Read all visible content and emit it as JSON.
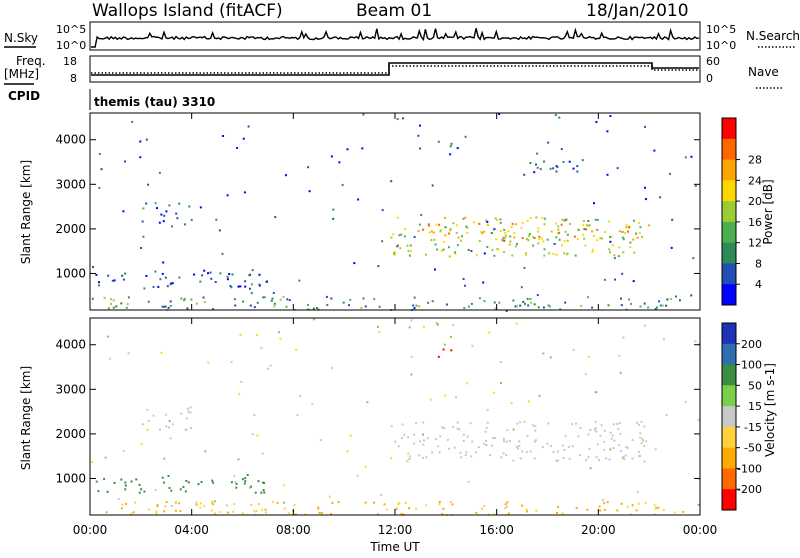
{
  "header": {
    "station": "Wallops Island (fitACF)",
    "beam": "Beam 01",
    "date": "18/Jan/2010"
  },
  "status_panel": {
    "nsky_label": "N.Sky",
    "nsearch_label": "N.Search",
    "left_ticks": [
      "10^5",
      "10^0"
    ],
    "right_ticks": [
      "10^5",
      "10^0"
    ],
    "freq_label_1": "Freq.",
    "freq_label_2": "[MHz]",
    "freq_ticks": [
      "18",
      "8"
    ],
    "nave_label": "Nave",
    "nave_ticks": [
      "60",
      "0"
    ],
    "cpid_label": "CPID",
    "cpid_text": "themis (tau) 3310"
  },
  "chart_data": [
    {
      "type": "heatmap",
      "panel": "power",
      "ylabel": "Slant Range [km]",
      "yticks": [
        "1000",
        "2000",
        "3000",
        "4000"
      ],
      "ylim": [
        180,
        4600
      ],
      "xlim": [
        0,
        24
      ],
      "colorbar_label": "Power [dB]",
      "colorbar_ticks": [
        "4",
        "8",
        "12",
        "16",
        "20",
        "24",
        "28"
      ],
      "colors": [
        "#0000ff",
        "#1f4fb4",
        "#2e8b57",
        "#4caf50",
        "#9acd32",
        "#ffd700",
        "#ffa500",
        "#ff6600",
        "#ff0000"
      ],
      "regions": [
        {
          "t0": 11.8,
          "t1": 22.0,
          "r0": 1400,
          "r1": 2300,
          "level": 16
        },
        {
          "t0": 13.0,
          "t1": 22.0,
          "r0": 1750,
          "r1": 2150,
          "level": 22
        },
        {
          "t0": 2.0,
          "t1": 4.0,
          "r0": 2100,
          "r1": 2600,
          "level": 6
        },
        {
          "t0": 0.2,
          "t1": 7.0,
          "r0": 700,
          "r1": 1100,
          "level": 5
        },
        {
          "t0": 0.5,
          "t1": 23.5,
          "r0": 200,
          "r1": 500,
          "level": 10
        },
        {
          "t0": 13.5,
          "t1": 14.2,
          "r0": 3700,
          "r1": 4000,
          "level": 6
        },
        {
          "t0": 17.0,
          "t1": 19.5,
          "r0": 3200,
          "r1": 3600,
          "level": 5
        }
      ]
    },
    {
      "type": "heatmap",
      "panel": "velocity",
      "ylabel": "Slant Range [km]",
      "yticks": [
        "1000",
        "2000",
        "3000",
        "4000"
      ],
      "ylim": [
        180,
        4600
      ],
      "xlim": [
        0,
        24
      ],
      "colorbar_label": "Velocity [m s-1]",
      "colorbar_ticks": [
        "200",
        "100",
        "50",
        "15",
        "-15",
        "-50",
        "-100",
        "-200"
      ],
      "colors": [
        "#1c33b8",
        "#2e6fb0",
        "#3c8c44",
        "#7ad04a",
        "#c8c8c8",
        "#ffd23c",
        "#ffaa00",
        "#ff6a00",
        "#ff0000"
      ],
      "regions": [
        {
          "t0": 11.8,
          "t1": 22.0,
          "r0": 1400,
          "r1": 2300,
          "level": 0
        },
        {
          "t0": 2.0,
          "t1": 4.0,
          "r0": 2100,
          "r1": 2600,
          "level": 0
        },
        {
          "t0": 0.2,
          "t1": 7.0,
          "r0": 700,
          "r1": 1100,
          "level": 40
        },
        {
          "t0": 0.5,
          "t1": 23.5,
          "r0": 200,
          "r1": 500,
          "level": -30
        },
        {
          "t0": 13.5,
          "t1": 14.2,
          "r0": 3700,
          "r1": 4000,
          "level": -200
        }
      ]
    }
  ],
  "x_axis": {
    "label": "Time UT",
    "ticks": [
      "00:00",
      "04:00",
      "08:00",
      "12:00",
      "16:00",
      "20:00",
      "00:00"
    ]
  }
}
